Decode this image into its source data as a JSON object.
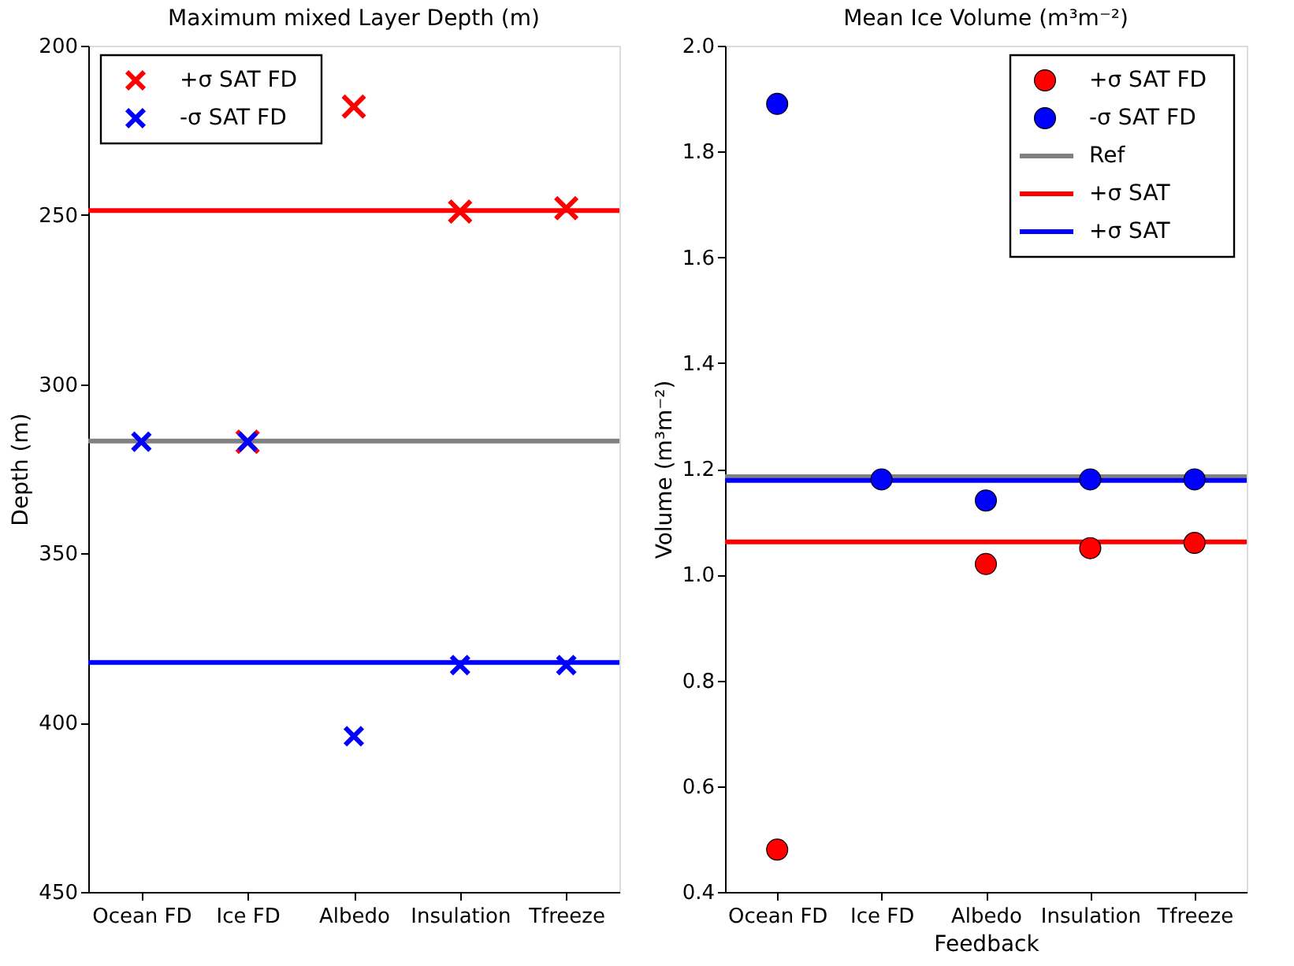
{
  "chart_data": [
    {
      "type": "scatter",
      "title": "Maximum mixed Layer Depth (m)",
      "ylabel": "Depth (m)",
      "categories": [
        "Ocean FD",
        "Ice FD",
        "Albedo",
        "Insulation",
        "Tfreeze"
      ],
      "ylim": [
        450,
        200
      ],
      "yticks": [
        200,
        250,
        300,
        350,
        400,
        450
      ],
      "marker": "cross",
      "legend": "top left",
      "grid": false,
      "series": [
        {
          "name": "+σ SAT FD",
          "color": "#ff0000",
          "values": [
            null,
            317,
            218,
            249,
            248
          ]
        },
        {
          "name": "-σ SAT FD",
          "color": "#0000ff",
          "values": [
            317,
            317,
            404,
            383,
            383
          ]
        }
      ],
      "ref_lines": [
        {
          "axis": "y",
          "value": 316.8,
          "color": "#808080"
        },
        {
          "axis": "y",
          "value": 248.7,
          "color": "#ff0000"
        },
        {
          "axis": "y",
          "value": 382.2,
          "color": "#0000ff"
        }
      ]
    },
    {
      "type": "scatter",
      "title": "Mean Ice Volume (m³m⁻²)",
      "ylabel": "Volume (m³m⁻²)",
      "xlabel": "Feedback",
      "categories": [
        "Ocean FD",
        "Ice FD",
        "Albedo",
        "Insulation",
        "Tfreeze"
      ],
      "ylim": [
        0.4,
        2.0
      ],
      "yticks": [
        {
          "value": 0.4,
          "label": "0.4"
        },
        {
          "value": 0.6,
          "label": "0.6"
        },
        {
          "value": 0.8,
          "label": "0.8"
        },
        {
          "value": 1.0,
          "label": "1.0"
        },
        {
          "value": 1.2,
          "label": "1.2"
        },
        {
          "value": 1.4,
          "label": "1.4"
        },
        {
          "value": 1.6,
          "label": "1.6"
        },
        {
          "value": 1.8,
          "label": "1.8"
        },
        {
          "value": 2.0,
          "label": "2.0"
        }
      ],
      "marker": "circle",
      "legend": "top right",
      "grid": false,
      "series": [
        {
          "name": "+σ SAT FD",
          "color": "#ff0000",
          "values": [
            0.48,
            null,
            1.02,
            1.05,
            1.06
          ]
        },
        {
          "name": "-σ SAT FD",
          "color": "#0000ff",
          "values": [
            1.89,
            1.18,
            1.14,
            1.18,
            1.18
          ]
        }
      ],
      "ref_lines": [
        {
          "axis": "y",
          "value": 1.185,
          "label": "Ref",
          "color": "#808080"
        },
        {
          "axis": "y",
          "value": 1.062,
          "label": "+σ SAT",
          "color": "#ff0000"
        },
        {
          "axis": "y",
          "value": 1.178,
          "label": "+σ SAT",
          "color": "#0000ff"
        }
      ]
    }
  ]
}
